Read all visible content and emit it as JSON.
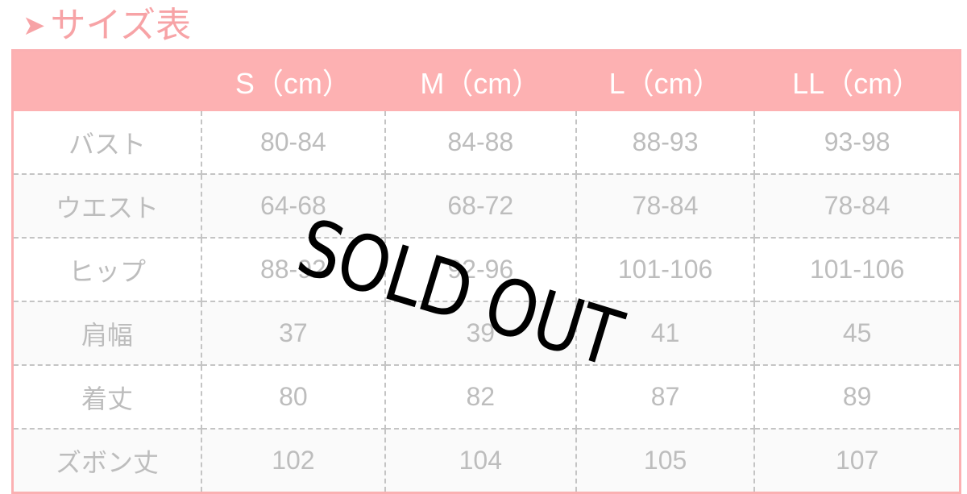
{
  "title": {
    "arrow_icon": "arrow-right-icon",
    "text": "サイズ表"
  },
  "columns": [
    "",
    "S（cm）",
    "M（cm）",
    "L（cm）",
    "LL（cm）"
  ],
  "rows": [
    {
      "label": "バスト",
      "values": [
        "80-84",
        "84-88",
        "88-93",
        "93-98"
      ]
    },
    {
      "label": "ウエスト",
      "values": [
        "64-68",
        "68-72",
        "78-84",
        "78-84"
      ]
    },
    {
      "label": "ヒップ",
      "values": [
        "88-92",
        "92-96",
        "101-106",
        "101-106"
      ]
    },
    {
      "label": "肩幅",
      "values": [
        "37",
        "39",
        "41",
        "45"
      ]
    },
    {
      "label": "着丈",
      "values": [
        "80",
        "82",
        "87",
        "89"
      ]
    },
    {
      "label": "ズボン丈",
      "values": [
        "102",
        "104",
        "105",
        "107"
      ]
    }
  ],
  "stamp": "SOLD OUT",
  "colors": {
    "accent": "#fdb1b2",
    "title": "#f7a3a6",
    "cell_text": "#bdbdbd"
  }
}
